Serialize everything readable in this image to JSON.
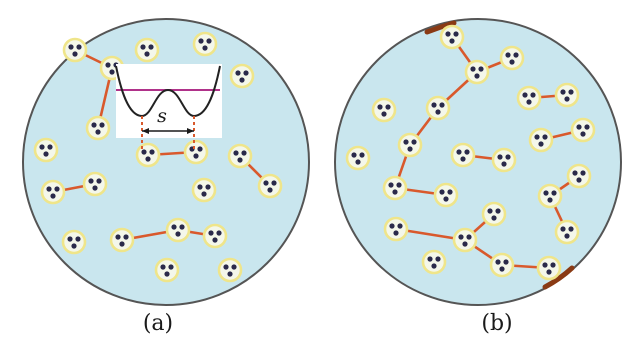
{
  "panels": [
    {
      "caption": "(a)"
    },
    {
      "caption": "(b)"
    }
  ],
  "inset": {
    "distance_label": "s"
  },
  "colors": {
    "disk_fill": "#c9e6ee",
    "disk_edge": "#555555",
    "cluster_ring": "#efe58a",
    "cluster_fill": "#f4f7ea",
    "particle": "#2a2a4a",
    "bond": "#d9592c",
    "boundary_bond": "#8a3a14",
    "potential_curve": "#222222",
    "energy_level": "#b0328a"
  }
}
